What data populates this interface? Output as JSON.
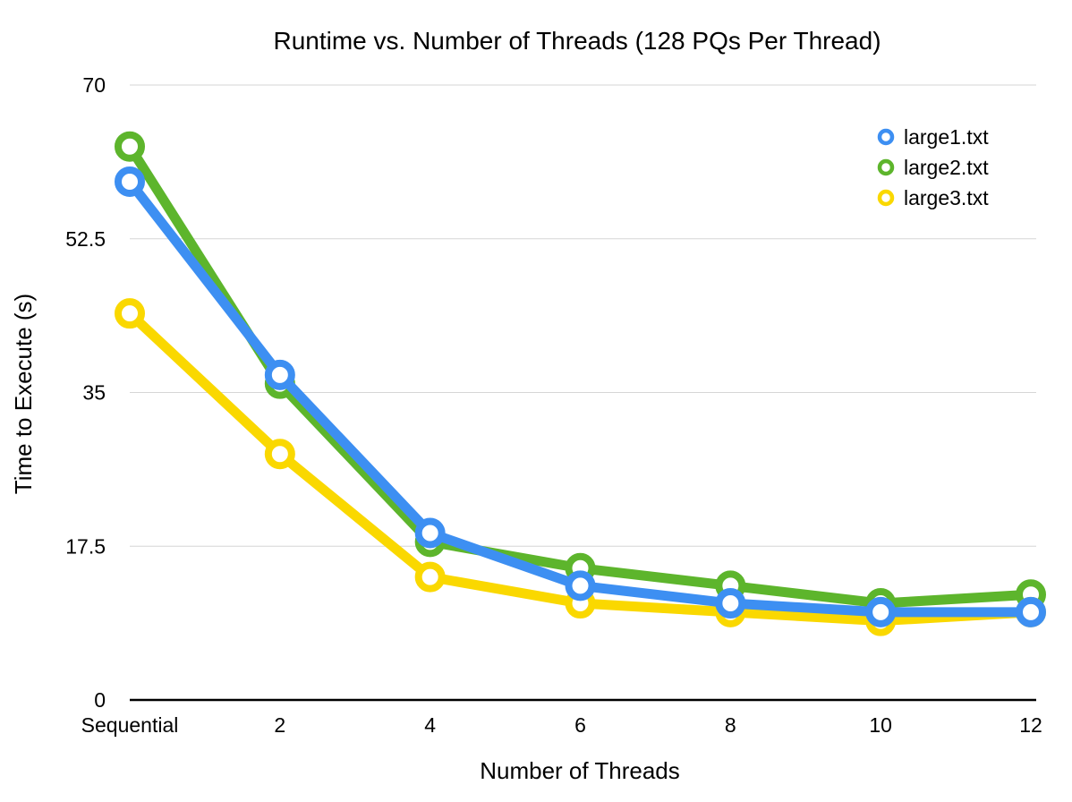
{
  "chart_data": {
    "type": "line",
    "title": "Runtime vs. Number of Threads (128 PQs Per Thread)",
    "xlabel": "Number of Threads",
    "ylabel": "Time to Execute (s)",
    "categories": [
      "Sequential",
      "2",
      "4",
      "6",
      "8",
      "10",
      "12"
    ],
    "ylim": [
      0,
      70
    ],
    "yticks": [
      "0",
      "17.5",
      "35",
      "52.5",
      "70"
    ],
    "grid": true,
    "legend_position": "top-right",
    "series": [
      {
        "name": "large2.txt",
        "color": "#5db52c",
        "values": [
          63,
          36,
          18,
          15,
          13,
          11,
          12
        ]
      },
      {
        "name": "large3.txt",
        "color": "#fad800",
        "values": [
          44,
          28,
          14,
          11,
          10,
          9,
          10
        ]
      },
      {
        "name": "large1.txt",
        "color": "#3d8ff2",
        "values": [
          59,
          37,
          19,
          13,
          11,
          10,
          10
        ]
      }
    ],
    "legend_order": [
      "large1.txt",
      "large2.txt",
      "large3.txt"
    ]
  }
}
